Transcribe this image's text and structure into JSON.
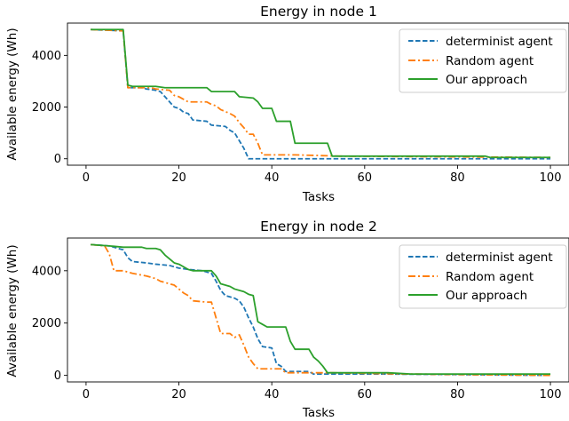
{
  "chart_data": [
    {
      "type": "line",
      "title": "Energy in node 1",
      "xlabel": "Tasks",
      "ylabel": "Available energy (Wh)",
      "xlim": [
        -4,
        104
      ],
      "ylim": [
        -250,
        5250
      ],
      "xticks": [
        0,
        20,
        40,
        60,
        80,
        100
      ],
      "yticks": [
        0,
        2000,
        4000
      ],
      "legend_position": "top-right",
      "series": [
        {
          "name": "determinist agent",
          "color": "#1f77b4",
          "style": "dashed",
          "points": [
            [
              1,
              5000
            ],
            [
              8,
              4950
            ],
            [
              9,
              2750
            ],
            [
              12,
              2750
            ],
            [
              13,
              2700
            ],
            [
              15,
              2650
            ],
            [
              16,
              2600
            ],
            [
              17,
              2400
            ],
            [
              18,
              2200
            ],
            [
              19,
              2000
            ],
            [
              20,
              1950
            ],
            [
              21,
              1800
            ],
            [
              22,
              1750
            ],
            [
              23,
              1500
            ],
            [
              26,
              1450
            ],
            [
              27,
              1300
            ],
            [
              30,
              1250
            ],
            [
              31,
              1100
            ],
            [
              32,
              1000
            ],
            [
              33,
              700
            ],
            [
              34,
              400
            ],
            [
              35,
              0
            ],
            [
              100,
              0
            ]
          ]
        },
        {
          "name": "Random agent",
          "color": "#ff7f0e",
          "style": "dashdot",
          "points": [
            [
              1,
              5000
            ],
            [
              8,
              4950
            ],
            [
              9,
              2750
            ],
            [
              14,
              2750
            ],
            [
              15,
              2700
            ],
            [
              18,
              2650
            ],
            [
              19,
              2450
            ],
            [
              20,
              2400
            ],
            [
              21,
              2300
            ],
            [
              22,
              2200
            ],
            [
              26,
              2200
            ],
            [
              27,
              2100
            ],
            [
              28,
              2050
            ],
            [
              29,
              1900
            ],
            [
              31,
              1750
            ],
            [
              32,
              1650
            ],
            [
              33,
              1400
            ],
            [
              34,
              1200
            ],
            [
              35,
              950
            ],
            [
              36,
              950
            ],
            [
              37,
              600
            ],
            [
              38,
              150
            ],
            [
              45,
              150
            ],
            [
              55,
              100
            ],
            [
              100,
              50
            ]
          ]
        },
        {
          "name": "Our approach",
          "color": "#2ca02c",
          "style": "solid",
          "points": [
            [
              1,
              5000
            ],
            [
              8,
              5000
            ],
            [
              9,
              2850
            ],
            [
              10,
              2800
            ],
            [
              15,
              2800
            ],
            [
              17,
              2750
            ],
            [
              26,
              2750
            ],
            [
              27,
              2600
            ],
            [
              32,
              2600
            ],
            [
              33,
              2400
            ],
            [
              36,
              2350
            ],
            [
              37,
              2200
            ],
            [
              38,
              1950
            ],
            [
              40,
              1950
            ],
            [
              41,
              1450
            ],
            [
              44,
              1450
            ],
            [
              45,
              600
            ],
            [
              52,
              600
            ],
            [
              53,
              100
            ],
            [
              86,
              100
            ],
            [
              87,
              50
            ],
            [
              100,
              50
            ]
          ]
        }
      ]
    },
    {
      "type": "line",
      "title": "Energy in node 2",
      "xlabel": "Tasks",
      "ylabel": "Available energy (Wh)",
      "xlim": [
        -4,
        104
      ],
      "ylim": [
        -250,
        5250
      ],
      "xticks": [
        0,
        20,
        40,
        60,
        80,
        100
      ],
      "yticks": [
        0,
        2000,
        4000
      ],
      "legend_position": "top-right",
      "series": [
        {
          "name": "determinist agent",
          "color": "#1f77b4",
          "style": "dashed",
          "points": [
            [
              1,
              5000
            ],
            [
              5,
              4950
            ],
            [
              7,
              4850
            ],
            [
              8,
              4800
            ],
            [
              9,
              4500
            ],
            [
              10,
              4350
            ],
            [
              13,
              4300
            ],
            [
              15,
              4250
            ],
            [
              18,
              4200
            ],
            [
              20,
              4100
            ],
            [
              22,
              4050
            ],
            [
              25,
              4000
            ],
            [
              27,
              3900
            ],
            [
              28,
              3600
            ],
            [
              29,
              3250
            ],
            [
              30,
              3050
            ],
            [
              32,
              2950
            ],
            [
              33,
              2850
            ],
            [
              34,
              2600
            ],
            [
              35,
              2200
            ],
            [
              36,
              1850
            ],
            [
              37,
              1400
            ],
            [
              38,
              1100
            ],
            [
              40,
              1050
            ],
            [
              41,
              450
            ],
            [
              42,
              350
            ],
            [
              43,
              150
            ],
            [
              48,
              150
            ],
            [
              49,
              50
            ],
            [
              65,
              50
            ],
            [
              100,
              0
            ]
          ]
        },
        {
          "name": "Random agent",
          "color": "#ff7f0e",
          "style": "dashdot",
          "points": [
            [
              1,
              5000
            ],
            [
              4,
              4950
            ],
            [
              5,
              4650
            ],
            [
              6,
              4000
            ],
            [
              8,
              4000
            ],
            [
              10,
              3900
            ],
            [
              13,
              3800
            ],
            [
              15,
              3700
            ],
            [
              16,
              3600
            ],
            [
              18,
              3500
            ],
            [
              19,
              3450
            ],
            [
              20,
              3300
            ],
            [
              21,
              3150
            ],
            [
              22,
              3050
            ],
            [
              23,
              2850
            ],
            [
              26,
              2800
            ],
            [
              27,
              2800
            ],
            [
              28,
              2200
            ],
            [
              29,
              1600
            ],
            [
              31,
              1600
            ],
            [
              32,
              1450
            ],
            [
              33,
              1550
            ],
            [
              34,
              1150
            ],
            [
              35,
              700
            ],
            [
              36,
              450
            ],
            [
              37,
              250
            ],
            [
              42,
              250
            ],
            [
              43,
              100
            ],
            [
              53,
              100
            ],
            [
              70,
              50
            ],
            [
              100,
              0
            ]
          ]
        },
        {
          "name": "Our approach",
          "color": "#2ca02c",
          "style": "solid",
          "points": [
            [
              1,
              5000
            ],
            [
              5,
              4950
            ],
            [
              8,
              4900
            ],
            [
              12,
              4900
            ],
            [
              13,
              4850
            ],
            [
              15,
              4850
            ],
            [
              16,
              4800
            ],
            [
              17,
              4600
            ],
            [
              18,
              4450
            ],
            [
              19,
              4300
            ],
            [
              20,
              4250
            ],
            [
              21,
              4150
            ],
            [
              22,
              4050
            ],
            [
              23,
              4000
            ],
            [
              27,
              4000
            ],
            [
              28,
              3800
            ],
            [
              29,
              3500
            ],
            [
              31,
              3400
            ],
            [
              32,
              3300
            ],
            [
              34,
              3200
            ],
            [
              35,
              3100
            ],
            [
              36,
              3050
            ],
            [
              37,
              2050
            ],
            [
              38,
              1950
            ],
            [
              39,
              1850
            ],
            [
              43,
              1850
            ],
            [
              44,
              1300
            ],
            [
              45,
              1000
            ],
            [
              48,
              1000
            ],
            [
              49,
              700
            ],
            [
              50,
              550
            ],
            [
              51,
              350
            ],
            [
              52,
              100
            ],
            [
              65,
              100
            ],
            [
              70,
              50
            ],
            [
              100,
              50
            ]
          ]
        }
      ]
    }
  ]
}
